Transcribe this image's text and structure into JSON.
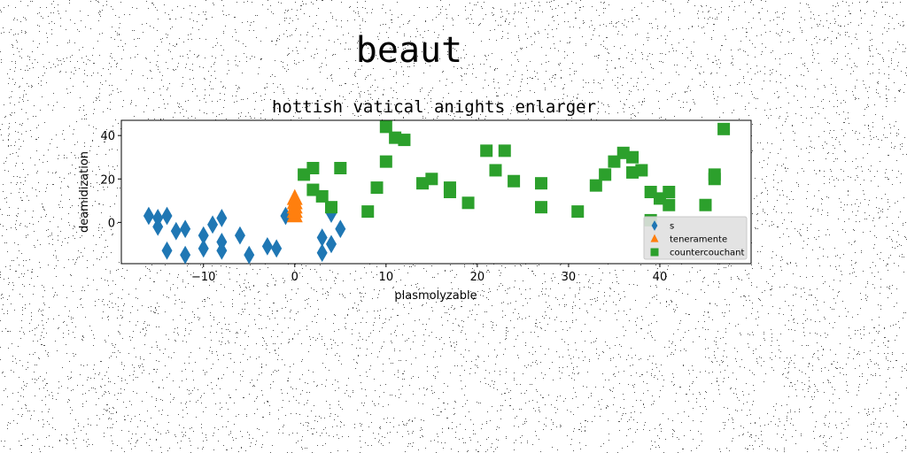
{
  "suptitle": "beaut",
  "chart_data": {
    "type": "scatter",
    "title": "hottish vatical anights enlarger",
    "xlabel": "plasmolyzable",
    "ylabel": "deamidization",
    "xlim": [
      -19,
      50
    ],
    "ylim": [
      -19,
      47
    ],
    "xticks": [
      -10,
      0,
      10,
      20,
      30,
      40
    ],
    "yticks": [
      0,
      20,
      40
    ],
    "grid": false,
    "legend_position": "lower-right",
    "series": [
      {
        "name": "s",
        "marker": "diamond",
        "color": "#1f77b4",
        "points": [
          [
            -16,
            3
          ],
          [
            -15,
            2
          ],
          [
            -15,
            -2
          ],
          [
            -14,
            3
          ],
          [
            -14,
            -13
          ],
          [
            -13,
            -4
          ],
          [
            -12,
            -3
          ],
          [
            -12,
            -15
          ],
          [
            -10,
            -6
          ],
          [
            -10,
            -12
          ],
          [
            -9,
            -1
          ],
          [
            -8,
            -9
          ],
          [
            -8,
            2
          ],
          [
            -8,
            -13
          ],
          [
            -6,
            -6
          ],
          [
            -5,
            -15
          ],
          [
            -3,
            -11
          ],
          [
            -2,
            -12
          ],
          [
            -1,
            3
          ],
          [
            3,
            -7
          ],
          [
            3,
            -14
          ],
          [
            4,
            -10
          ],
          [
            4,
            4
          ],
          [
            5,
            -3
          ]
        ]
      },
      {
        "name": "teneramente",
        "marker": "triangle",
        "color": "#ff7f0e",
        "points": [
          [
            0,
            3
          ],
          [
            0,
            5
          ],
          [
            0,
            7
          ],
          [
            0,
            9
          ],
          [
            0,
            11
          ]
        ]
      },
      {
        "name": "countercouchant",
        "marker": "square",
        "color": "#2ca02c",
        "points": [
          [
            1,
            22
          ],
          [
            2,
            15
          ],
          [
            2,
            25
          ],
          [
            3,
            12
          ],
          [
            4,
            7
          ],
          [
            5,
            25
          ],
          [
            8,
            5
          ],
          [
            9,
            16
          ],
          [
            10,
            44
          ],
          [
            10,
            28
          ],
          [
            11,
            39
          ],
          [
            12,
            38
          ],
          [
            14,
            18
          ],
          [
            15,
            20
          ],
          [
            17,
            14
          ],
          [
            17,
            16
          ],
          [
            19,
            9
          ],
          [
            21,
            33
          ],
          [
            22,
            24
          ],
          [
            23,
            33
          ],
          [
            24,
            19
          ],
          [
            27,
            7
          ],
          [
            27,
            18
          ],
          [
            31,
            5
          ],
          [
            33,
            17
          ],
          [
            34,
            22
          ],
          [
            35,
            28
          ],
          [
            36,
            32
          ],
          [
            37,
            23
          ],
          [
            37,
            30
          ],
          [
            38,
            24
          ],
          [
            39,
            1
          ],
          [
            39,
            14
          ],
          [
            40,
            11
          ],
          [
            41,
            14
          ],
          [
            41,
            8
          ],
          [
            45,
            8
          ],
          [
            46,
            20
          ],
          [
            46,
            22
          ],
          [
            47,
            43
          ]
        ]
      }
    ]
  }
}
